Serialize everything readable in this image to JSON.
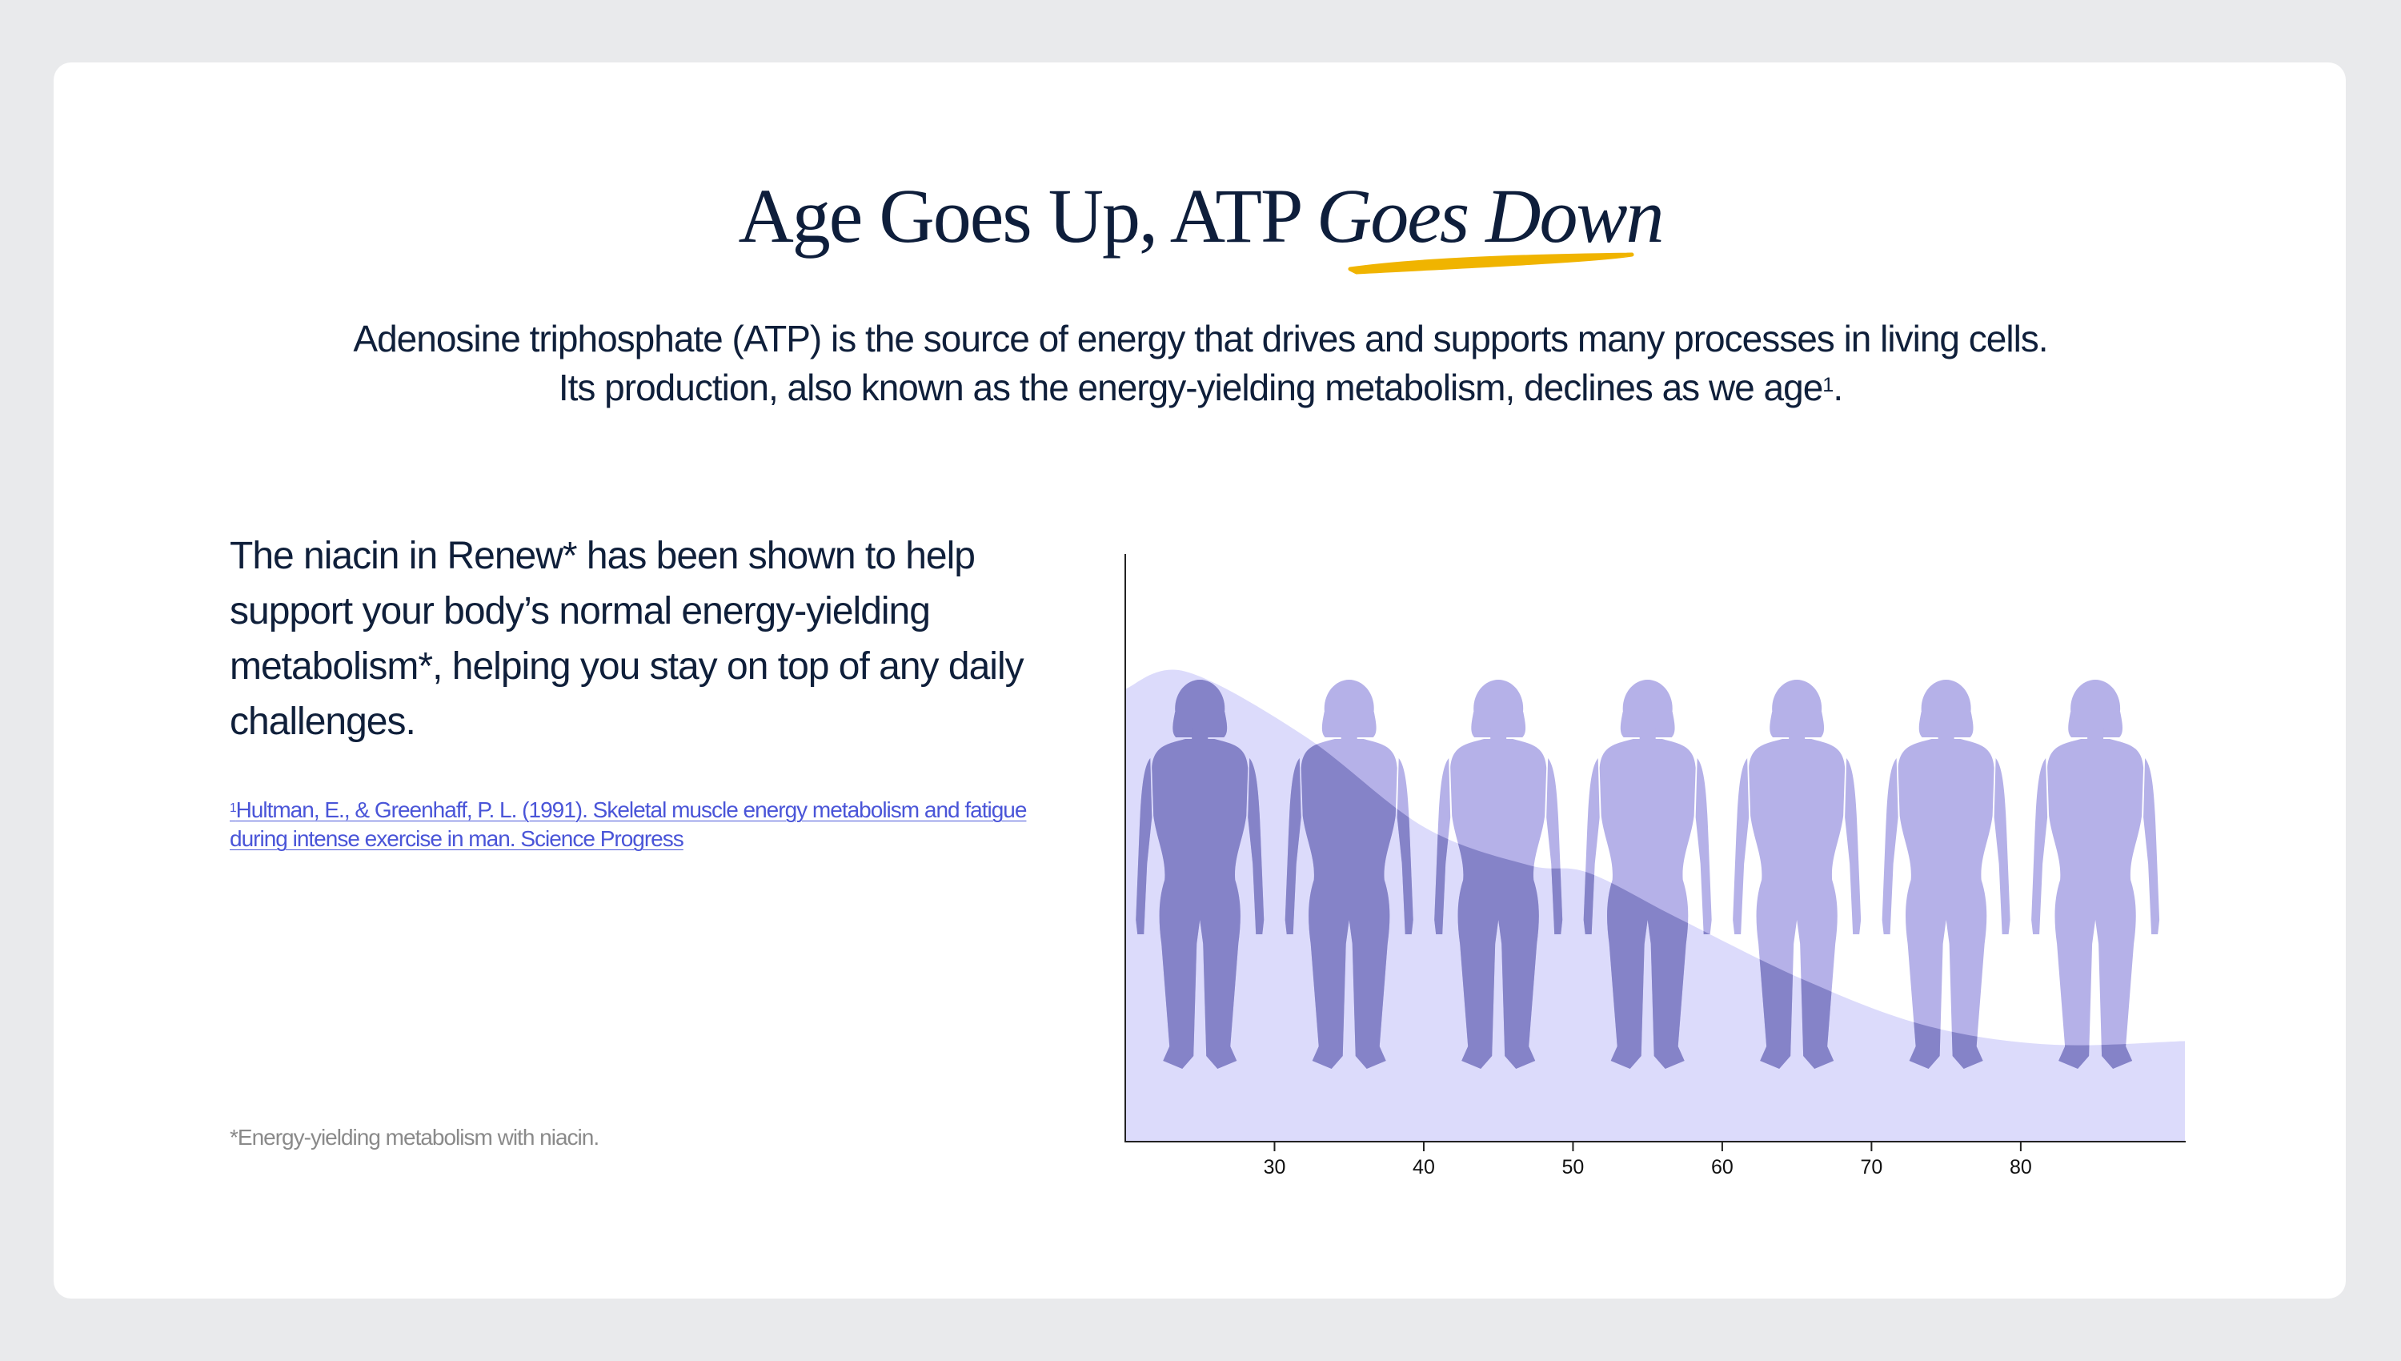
{
  "title": {
    "plain": "Age Goes Up, ATP ",
    "emphasis": "Goes Down",
    "underline_color": "#f0b400"
  },
  "subtitle": {
    "line1": "Adenosine triphosphate (ATP) is the source of energy that drives and supports many processes in living cells.",
    "line2": "Its production, also known as the energy-yielding metabolism, declines as we age",
    "line2_sup": "1",
    "line2_end": "."
  },
  "body": "The niacin in Renew* has been shown to help support your body’s normal energy-yielding metabolism*, helping you stay on top of any daily challenges.",
  "citation": {
    "sup": "1",
    "text": "Hultman, E., & Greenhaff, P. L. (1991). Skeletal muscle energy metabolism and fatigue during intense exercise in man. Science Progress"
  },
  "footnote": "*Energy-yielding metabolism with niacin.",
  "colors": {
    "area": "#dcdbfb",
    "figure_light": "#b5b1e8",
    "figure_dark": "#8583c8",
    "text": "#0f1f3a",
    "link": "#4a55d8"
  },
  "chart_data": {
    "type": "area",
    "title": "",
    "xlabel": "",
    "ylabel": "",
    "xlim": [
      20,
      91
    ],
    "ylim": [
      0,
      100
    ],
    "x_ticks": [
      "30",
      "40",
      "50",
      "60",
      "70",
      "80"
    ],
    "y_ticks": [],
    "grid": false,
    "x": [
      20,
      24,
      32,
      40,
      47,
      51,
      57,
      65.5,
      73.7,
      82,
      91
    ],
    "y": [
      77,
      80,
      69,
      53.5,
      47,
      45.7,
      38,
      27.4,
      19.6,
      16.4,
      17
    ],
    "figures": {
      "icon": "woman-silhouette-icon",
      "ages": [
        25,
        35,
        45,
        55,
        65,
        75,
        85
      ]
    }
  }
}
